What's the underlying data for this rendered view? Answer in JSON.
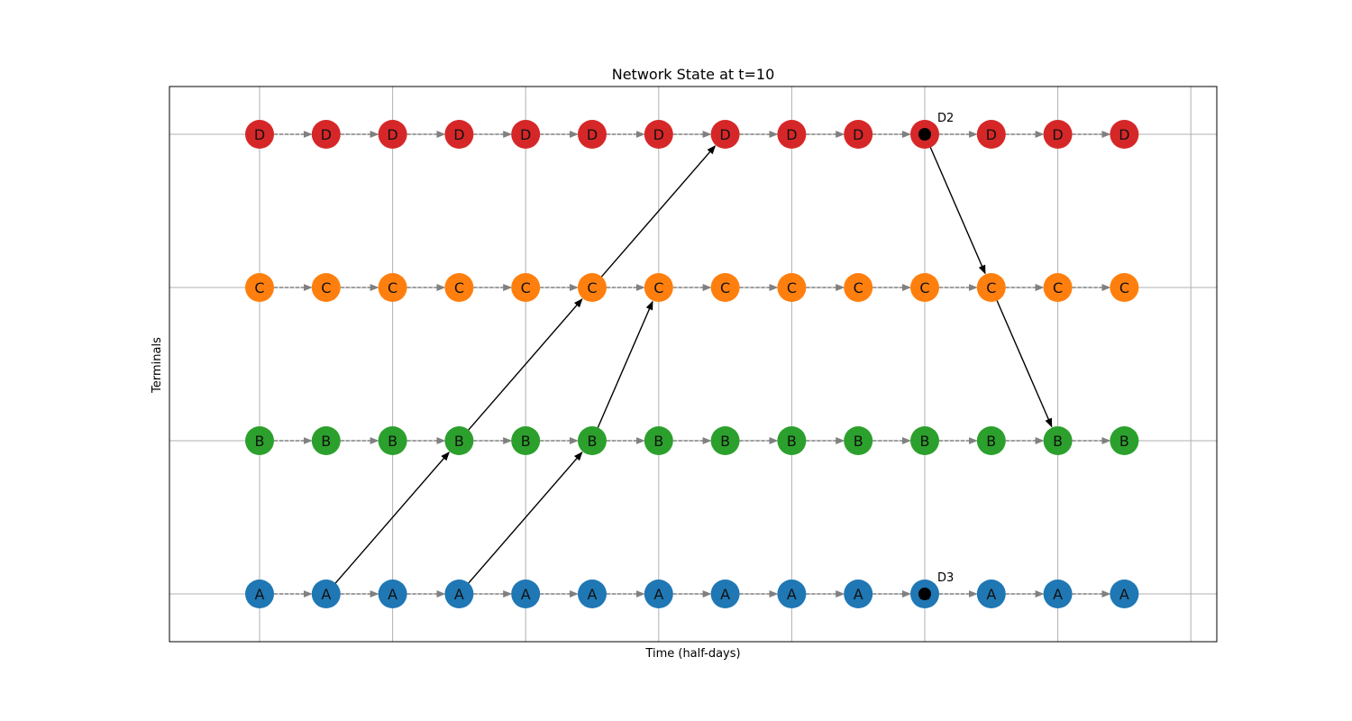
{
  "chart_data": {
    "type": "network-timeline",
    "title": "Network State at t=10",
    "xlabel": "Time (half-days)",
    "ylabel": "Terminals",
    "grid": true,
    "x_values": [
      0,
      1,
      2,
      3,
      4,
      5,
      6,
      7,
      8,
      9,
      10,
      11,
      12,
      13
    ],
    "terminals": [
      {
        "name": "A",
        "color": "#1f77b4"
      },
      {
        "name": "B",
        "color": "#2ca02c"
      },
      {
        "name": "C",
        "color": "#ff7f0e"
      },
      {
        "name": "D",
        "color": "#d62728"
      }
    ],
    "node_label_color": "#111111",
    "time_edge_color": "#808080",
    "transfer_edge_color": "#000000",
    "transfer_edges": [
      {
        "from": [
          "A",
          1
        ],
        "to": [
          "B",
          3
        ]
      },
      {
        "from": [
          "B",
          3
        ],
        "to": [
          "C",
          5
        ]
      },
      {
        "from": [
          "C",
          5
        ],
        "to": [
          "D",
          7
        ]
      },
      {
        "from": [
          "A",
          3
        ],
        "to": [
          "B",
          5
        ]
      },
      {
        "from": [
          "B",
          5
        ],
        "to": [
          "C",
          6
        ]
      },
      {
        "from": [
          "D",
          10
        ],
        "to": [
          "C",
          11
        ]
      },
      {
        "from": [
          "C",
          11
        ],
        "to": [
          "B",
          12
        ]
      }
    ],
    "markers": [
      {
        "label": "D2",
        "terminal": "D",
        "time": 10
      },
      {
        "label": "D3",
        "terminal": "A",
        "time": 10
      }
    ]
  }
}
